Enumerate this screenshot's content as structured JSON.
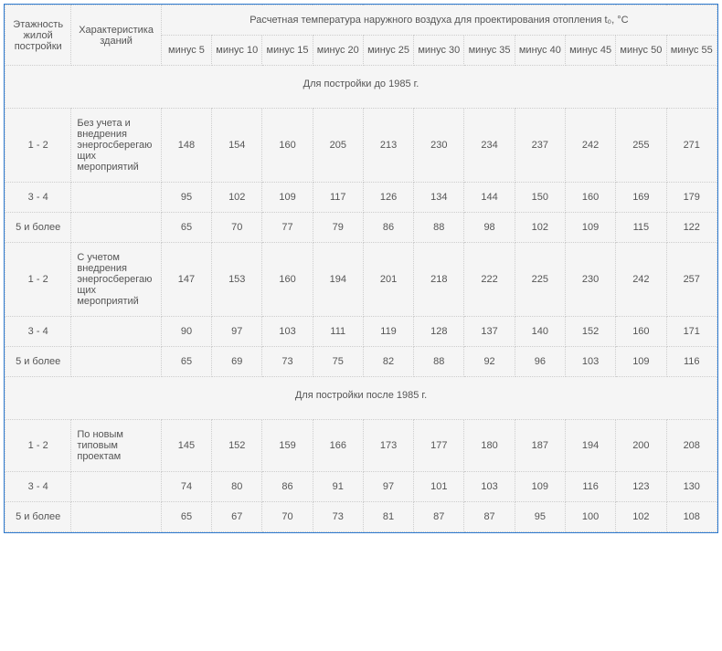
{
  "header": {
    "col_floors": "Этажность жилой постройки",
    "col_char": "Характеристика зданий",
    "col_temp_group": "Расчетная температура наружного воздуха для проектирования отопления t₀, °C",
    "temps": [
      "минус 5",
      "минус 10",
      "минус 15",
      "минус 20",
      "минус 25",
      "минус 30",
      "минус 35",
      "минус 40",
      "минус 45",
      "минус 50",
      "минус 55"
    ]
  },
  "section1": "Для постройки до 1985 г.",
  "section2": "Для постройки после 1985 г.",
  "rows1": [
    {
      "floors": "1 - 2",
      "char": "Без учета и внедрения энергосберегающих мероприятий",
      "v": [
        "148",
        "154",
        "160",
        "205",
        "213",
        "230",
        "234",
        "237",
        "242",
        "255",
        "271"
      ]
    },
    {
      "floors": "3 - 4",
      "char": "",
      "v": [
        "95",
        "102",
        "109",
        "117",
        "126",
        "134",
        "144",
        "150",
        "160",
        "169",
        "179"
      ]
    },
    {
      "floors": "5 и более",
      "char": "",
      "v": [
        "65",
        "70",
        "77",
        "79",
        "86",
        "88",
        "98",
        "102",
        "109",
        "115",
        "122"
      ]
    },
    {
      "floors": "1 - 2",
      "char": "С учетом внедрения энергосберегающих мероприятий",
      "v": [
        "147",
        "153",
        "160",
        "194",
        "201",
        "218",
        "222",
        "225",
        "230",
        "242",
        "257"
      ]
    },
    {
      "floors": "3 - 4",
      "char": "",
      "v": [
        "90",
        "97",
        "103",
        "111",
        "119",
        "128",
        "137",
        "140",
        "152",
        "160",
        "171"
      ]
    },
    {
      "floors": "5 и более",
      "char": "",
      "v": [
        "65",
        "69",
        "73",
        "75",
        "82",
        "88",
        "92",
        "96",
        "103",
        "109",
        "116"
      ]
    }
  ],
  "rows2": [
    {
      "floors": "1 - 2",
      "char": "По новым типовым проектам",
      "v": [
        "145",
        "152",
        "159",
        "166",
        "173",
        "177",
        "180",
        "187",
        "194",
        "200",
        "208"
      ]
    },
    {
      "floors": "3 - 4",
      "char": "",
      "v": [
        "74",
        "80",
        "86",
        "91",
        "97",
        "101",
        "103",
        "109",
        "116",
        "123",
        "130"
      ]
    },
    {
      "floors": "5 и более",
      "char": "",
      "v": [
        "65",
        "67",
        "70",
        "73",
        "81",
        "87",
        "87",
        "95",
        "100",
        "102",
        "108"
      ]
    }
  ],
  "style": {
    "border_color": "#2e7bd1",
    "grid_color": "#cdcdcd",
    "bg": "#f5f5f5",
    "text_color": "#555555",
    "font_size_pt": 11
  }
}
